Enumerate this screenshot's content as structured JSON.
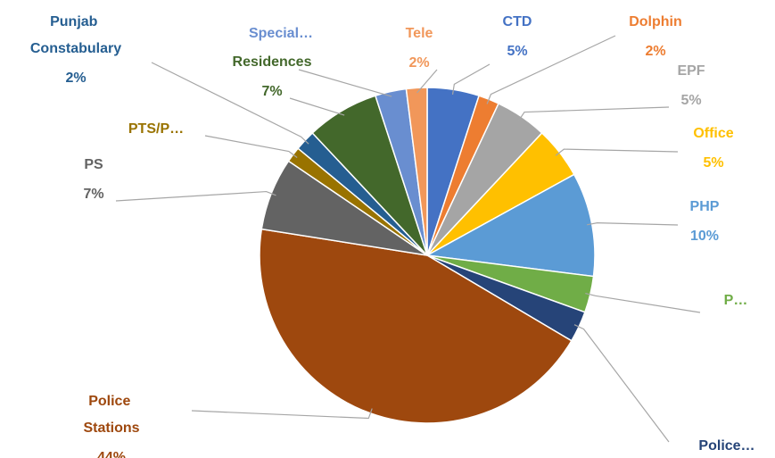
{
  "chart_data": {
    "type": "pie",
    "categories": [
      "CTD",
      "Dolphin",
      "EPF",
      "Office",
      "PHP",
      "P…",
      "Police…",
      "Police Stations",
      "PS",
      "PTS/P…",
      "Punjab Constabulary",
      "Residences",
      "Special…",
      "Tele"
    ],
    "values": [
      5,
      2,
      5,
      5,
      10,
      3.5,
      3,
      44,
      7,
      1.5,
      2,
      7,
      3,
      2
    ],
    "value_labels": [
      "5%",
      "2%",
      "5%",
      "5%",
      "10%",
      null,
      null,
      "44%",
      "7%",
      null,
      "2%",
      "7%",
      null,
      "2%"
    ],
    "colors": [
      "#4472c4",
      "#ed7d31",
      "#a5a5a5",
      "#ffc000",
      "#5b9bd5",
      "#70ad47",
      "#264478",
      "#9e480e",
      "#636363",
      "#997300",
      "#255e91",
      "#43682b",
      "#698ed0",
      "#f1975a"
    ]
  }
}
